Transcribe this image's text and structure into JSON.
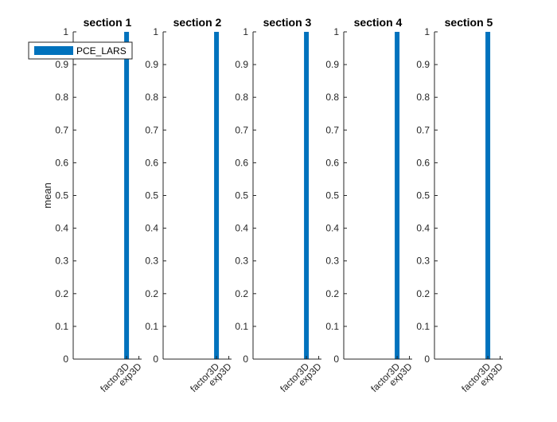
{
  "chart_data": {
    "type": "bar",
    "ylabel": "mean",
    "ylim": [
      0,
      1
    ],
    "yticks": [
      "0",
      "0.1",
      "0.2",
      "0.3",
      "0.4",
      "0.5",
      "0.6",
      "0.7",
      "0.8",
      "0.9",
      "1"
    ],
    "categories": [
      "factor3D",
      "exp3D"
    ],
    "legend": {
      "location": "top-left",
      "entries": [
        "PCE_LARS"
      ]
    },
    "series_color": "#0072BD",
    "grid": false,
    "panels": [
      {
        "title": "section 1",
        "series": [
          {
            "name": "PCE_LARS",
            "values": [
              1,
              0
            ]
          }
        ]
      },
      {
        "title": "section 2",
        "series": [
          {
            "name": "PCE_LARS",
            "values": [
              1,
              0
            ]
          }
        ]
      },
      {
        "title": "section 3",
        "series": [
          {
            "name": "PCE_LARS",
            "values": [
              1,
              0
            ]
          }
        ]
      },
      {
        "title": "section 4",
        "series": [
          {
            "name": "PCE_LARS",
            "values": [
              1,
              0
            ]
          }
        ]
      },
      {
        "title": "section 5",
        "series": [
          {
            "name": "PCE_LARS",
            "values": [
              1,
              0
            ]
          }
        ]
      }
    ]
  }
}
